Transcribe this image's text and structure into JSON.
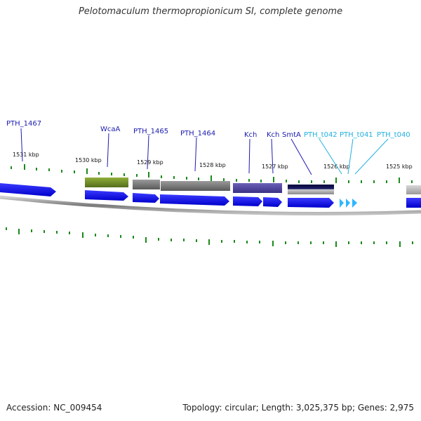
{
  "title": "Pelotomaculum thermopropionicum SI, complete genome",
  "footer": {
    "accession": "Accession: NC_009454",
    "summary": "Topology: circular; Length: 3,025,375 bp; Genes: 2,975"
  },
  "colors": {
    "cds": "#1010f0",
    "trna": "#2fb6ff",
    "tick": "#1a8a1a",
    "backbone": "#8a8a8a",
    "protein_label": "#1b1bb0",
    "trna_label": "#22b0e0",
    "wcaa_feature": "#6b8a26",
    "gray_feature": "#6e6e6e",
    "kch_feature": "#4a3f9e",
    "smta_feature": "#101040"
  },
  "scale_labels": [
    "1531 kbp",
    "1530 kbp",
    "1529 kbp",
    "1528 kbp",
    "1527 kbp",
    "1526 kbp",
    "1525 kbp"
  ],
  "gene_labels": [
    {
      "text": "PTH_1467",
      "kind": "protein"
    },
    {
      "text": "WcaA",
      "kind": "protein"
    },
    {
      "text": "PTH_1465",
      "kind": "protein"
    },
    {
      "text": "PTH_1464",
      "kind": "protein"
    },
    {
      "text": "Kch",
      "kind": "protein"
    },
    {
      "text": "Kch",
      "kind": "protein"
    },
    {
      "text": "SmtA",
      "kind": "protein"
    },
    {
      "text": "PTH_t042",
      "kind": "trna"
    },
    {
      "text": "PTH_t041",
      "kind": "trna"
    },
    {
      "text": "PTH_t040",
      "kind": "trna"
    }
  ]
}
